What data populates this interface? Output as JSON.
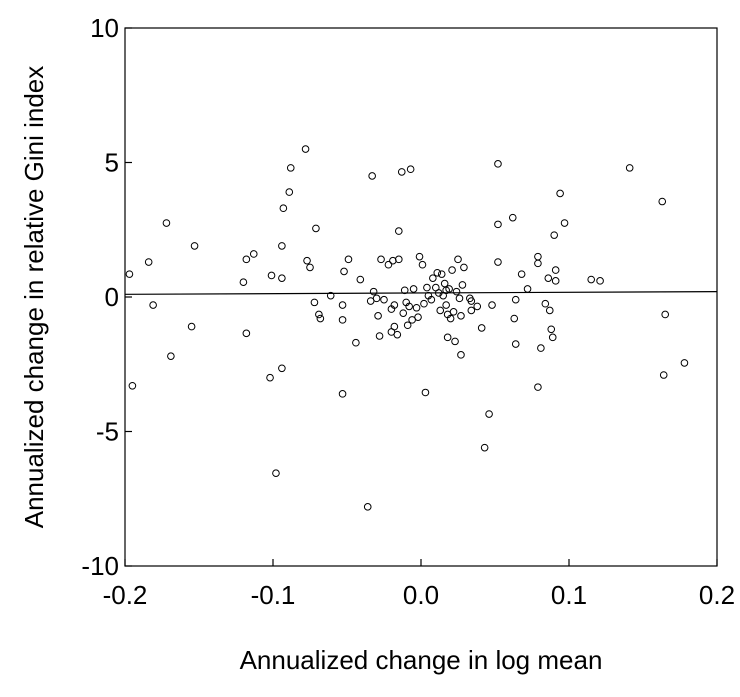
{
  "chart_data": {
    "type": "scatter",
    "title": "",
    "xlabel": "Annualized change in log mean",
    "ylabel": "Annualized change in relative Gini index",
    "xlim": [
      -0.2,
      0.2
    ],
    "ylim": [
      -10,
      10
    ],
    "x_ticks": [
      "-0.2",
      "-0.1",
      "0.0",
      "0.1",
      "0.2"
    ],
    "y_ticks": [
      "10",
      "5",
      "0",
      "-5",
      "-10"
    ],
    "grid": false,
    "legend": "none",
    "marker_color": "#000000",
    "line_color": "#000000",
    "fit_line": {
      "x": [
        -0.2,
        0.2
      ],
      "y": [
        0.1,
        0.2
      ]
    },
    "points": [
      {
        "x": -0.197,
        "y": 0.85
      },
      {
        "x": -0.195,
        "y": -3.3
      },
      {
        "x": -0.184,
        "y": 1.3
      },
      {
        "x": -0.181,
        "y": -0.3
      },
      {
        "x": -0.172,
        "y": 2.75
      },
      {
        "x": -0.169,
        "y": -2.2
      },
      {
        "x": -0.153,
        "y": 1.9
      },
      {
        "x": -0.155,
        "y": -1.1
      },
      {
        "x": -0.12,
        "y": 0.55
      },
      {
        "x": -0.118,
        "y": 1.4
      },
      {
        "x": -0.118,
        "y": -1.35
      },
      {
        "x": -0.113,
        "y": 1.6
      },
      {
        "x": -0.102,
        "y": -3.0
      },
      {
        "x": -0.101,
        "y": 0.8
      },
      {
        "x": -0.098,
        "y": -6.55
      },
      {
        "x": -0.094,
        "y": 1.9
      },
      {
        "x": -0.094,
        "y": 0.7
      },
      {
        "x": -0.094,
        "y": -2.65
      },
      {
        "x": -0.093,
        "y": 3.3
      },
      {
        "x": -0.089,
        "y": 3.9
      },
      {
        "x": -0.088,
        "y": 4.8
      },
      {
        "x": -0.078,
        "y": 5.5
      },
      {
        "x": -0.077,
        "y": 1.35
      },
      {
        "x": -0.075,
        "y": 1.1
      },
      {
        "x": -0.072,
        "y": -0.2
      },
      {
        "x": -0.071,
        "y": 2.55
      },
      {
        "x": -0.069,
        "y": -0.65
      },
      {
        "x": -0.068,
        "y": -0.8
      },
      {
        "x": -0.061,
        "y": 0.05
      },
      {
        "x": -0.053,
        "y": -0.3
      },
      {
        "x": -0.053,
        "y": -0.85
      },
      {
        "x": -0.052,
        "y": 0.95
      },
      {
        "x": -0.049,
        "y": 1.4
      },
      {
        "x": -0.053,
        "y": -3.6
      },
      {
        "x": -0.044,
        "y": -1.7
      },
      {
        "x": -0.041,
        "y": 0.65
      },
      {
        "x": -0.036,
        "y": -7.8
      },
      {
        "x": -0.034,
        "y": -0.15
      },
      {
        "x": -0.033,
        "y": 4.5
      },
      {
        "x": -0.032,
        "y": 0.2
      },
      {
        "x": -0.03,
        "y": -0.05
      },
      {
        "x": -0.029,
        "y": -0.7
      },
      {
        "x": -0.028,
        "y": -1.45
      },
      {
        "x": -0.027,
        "y": 1.4
      },
      {
        "x": -0.025,
        "y": -0.1
      },
      {
        "x": -0.022,
        "y": 1.2
      },
      {
        "x": -0.02,
        "y": -0.45
      },
      {
        "x": -0.02,
        "y": -1.3
      },
      {
        "x": -0.019,
        "y": 1.35
      },
      {
        "x": -0.018,
        "y": -0.3
      },
      {
        "x": -0.018,
        "y": -1.1
      },
      {
        "x": -0.016,
        "y": -1.4
      },
      {
        "x": -0.015,
        "y": 1.4
      },
      {
        "x": -0.015,
        "y": 2.45
      },
      {
        "x": -0.013,
        "y": 4.65
      },
      {
        "x": -0.012,
        "y": -0.6
      },
      {
        "x": -0.011,
        "y": 0.25
      },
      {
        "x": -0.01,
        "y": -0.2
      },
      {
        "x": -0.009,
        "y": -1.05
      },
      {
        "x": -0.008,
        "y": -0.35
      },
      {
        "x": -0.007,
        "y": 4.75
      },
      {
        "x": -0.006,
        "y": -0.85
      },
      {
        "x": -0.005,
        "y": 0.3
      },
      {
        "x": -0.003,
        "y": -0.4
      },
      {
        "x": -0.002,
        "y": -0.75
      },
      {
        "x": -0.001,
        "y": 1.5
      },
      {
        "x": 0.001,
        "y": 1.2
      },
      {
        "x": 0.002,
        "y": -0.25
      },
      {
        "x": 0.003,
        "y": -3.55
      },
      {
        "x": 0.004,
        "y": 0.35
      },
      {
        "x": 0.005,
        "y": 0.05
      },
      {
        "x": 0.007,
        "y": -0.1
      },
      {
        "x": 0.008,
        "y": 0.7
      },
      {
        "x": 0.01,
        "y": 0.35
      },
      {
        "x": 0.011,
        "y": 0.9
      },
      {
        "x": 0.012,
        "y": 0.15
      },
      {
        "x": 0.013,
        "y": -0.5
      },
      {
        "x": 0.014,
        "y": 0.85
      },
      {
        "x": 0.015,
        "y": 0.05
      },
      {
        "x": 0.016,
        "y": 0.5
      },
      {
        "x": 0.017,
        "y": 0.25
      },
      {
        "x": 0.017,
        "y": -0.3
      },
      {
        "x": 0.018,
        "y": -0.65
      },
      {
        "x": 0.018,
        "y": -1.5
      },
      {
        "x": 0.019,
        "y": 0.3
      },
      {
        "x": 0.02,
        "y": -0.8
      },
      {
        "x": 0.021,
        "y": 1.0
      },
      {
        "x": 0.022,
        "y": -0.55
      },
      {
        "x": 0.023,
        "y": -1.65
      },
      {
        "x": 0.024,
        "y": 0.2
      },
      {
        "x": 0.025,
        "y": 1.4
      },
      {
        "x": 0.026,
        "y": -0.05
      },
      {
        "x": 0.027,
        "y": -0.7
      },
      {
        "x": 0.027,
        "y": -2.15
      },
      {
        "x": 0.028,
        "y": 0.45
      },
      {
        "x": 0.029,
        "y": 1.1
      },
      {
        "x": 0.033,
        "y": -0.05
      },
      {
        "x": 0.034,
        "y": -0.15
      },
      {
        "x": 0.034,
        "y": -0.5
      },
      {
        "x": 0.038,
        "y": -0.35
      },
      {
        "x": 0.041,
        "y": -1.15
      },
      {
        "x": 0.043,
        "y": -5.6
      },
      {
        "x": 0.046,
        "y": -4.35
      },
      {
        "x": 0.048,
        "y": -0.3
      },
      {
        "x": 0.052,
        "y": 4.95
      },
      {
        "x": 0.052,
        "y": 1.3
      },
      {
        "x": 0.052,
        "y": 2.7
      },
      {
        "x": 0.062,
        "y": 2.95
      },
      {
        "x": 0.063,
        "y": -0.8
      },
      {
        "x": 0.064,
        "y": -1.75
      },
      {
        "x": 0.064,
        "y": -0.1
      },
      {
        "x": 0.068,
        "y": 0.85
      },
      {
        "x": 0.072,
        "y": 0.3
      },
      {
        "x": 0.079,
        "y": 1.5
      },
      {
        "x": 0.079,
        "y": 1.25
      },
      {
        "x": 0.079,
        "y": -3.35
      },
      {
        "x": 0.081,
        "y": -1.9
      },
      {
        "x": 0.084,
        "y": -0.25
      },
      {
        "x": 0.086,
        "y": 0.7
      },
      {
        "x": 0.087,
        "y": -0.5
      },
      {
        "x": 0.088,
        "y": -1.2
      },
      {
        "x": 0.089,
        "y": -1.5
      },
      {
        "x": 0.09,
        "y": 2.3
      },
      {
        "x": 0.091,
        "y": 0.6
      },
      {
        "x": 0.091,
        "y": 1.0
      },
      {
        "x": 0.094,
        "y": 3.85
      },
      {
        "x": 0.097,
        "y": 2.75
      },
      {
        "x": 0.115,
        "y": 0.65
      },
      {
        "x": 0.121,
        "y": 0.6
      },
      {
        "x": 0.141,
        "y": 4.8
      },
      {
        "x": 0.163,
        "y": 3.55
      },
      {
        "x": 0.164,
        "y": -2.9
      },
      {
        "x": 0.165,
        "y": -0.65
      },
      {
        "x": 0.178,
        "y": -2.45
      }
    ]
  }
}
